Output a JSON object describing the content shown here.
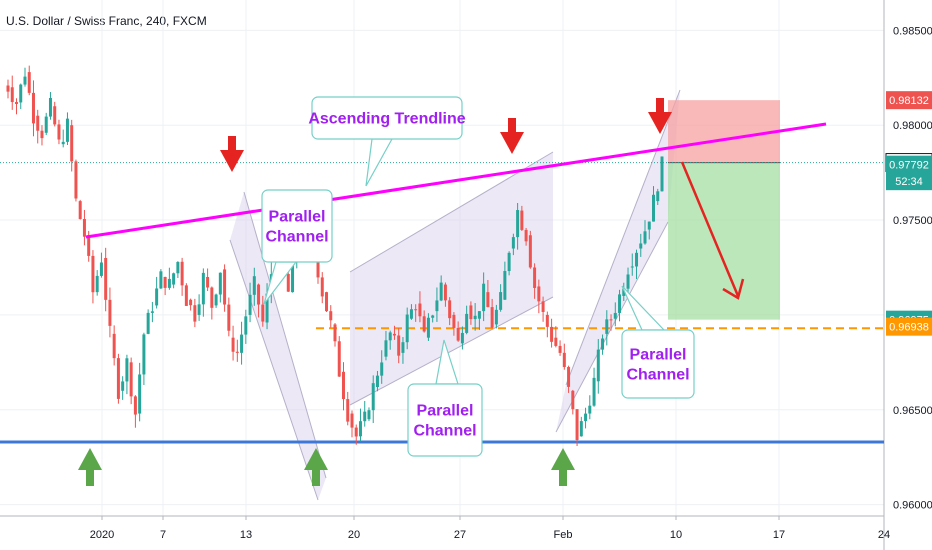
{
  "header": {
    "title": "U.S. Dollar / Swiss Franc, 240, FXCM"
  },
  "colors": {
    "up": "#26a69a",
    "down": "#ef5350",
    "trendline": "#ff00ff",
    "support": "#3d78d8",
    "resistance_dashed": "#ff9800",
    "channel_fill": "#dcd6ee",
    "arrow_red": "#e52421",
    "arrow_green": "#5aa649",
    "text_purple": "#a020f0",
    "callout_border": "#76d0c7"
  },
  "chart_data": {
    "type": "candlestick",
    "symbol": "U.S. Dollar / Swiss Franc",
    "timeframe": "240",
    "source": "FXCM",
    "ylim": [
      0.9594,
      0.9866
    ],
    "y_ticks": [
      "0.98500",
      "0.98000",
      "0.97500",
      "0.97000",
      "0.96500",
      "0.96000"
    ],
    "x_ticks": [
      "2020",
      "7",
      "13",
      "20",
      "27",
      "Feb",
      "10",
      "17",
      "24"
    ],
    "price_labels": [
      {
        "value": "0.98132",
        "price": 0.98132,
        "color": "#ef5350"
      },
      {
        "value": "0.97803",
        "price": 0.97803,
        "color": "#131722"
      },
      {
        "value": "0.97792",
        "price": 0.97792,
        "color": "#26a69a"
      },
      {
        "value": "52:34",
        "price": 0.97705,
        "color": "#26a69a"
      },
      {
        "value": "0.96975",
        "price": 0.96975,
        "color": "#26a69a"
      },
      {
        "value": "0.96938",
        "price": 0.96938,
        "color": "#ff9800"
      }
    ],
    "levels": {
      "support": 0.9633,
      "dashed_resistance": 0.9693,
      "stop": 0.98132,
      "entry": 0.97803,
      "target": 0.96975
    },
    "ohlc_close_path": [
      0.982,
      0.9812,
      0.9828,
      0.9805,
      0.9796,
      0.981,
      0.979,
      0.98,
      0.976,
      0.9742,
      0.9712,
      0.973,
      0.969,
      0.966,
      0.9675,
      0.9648,
      0.969,
      0.9705,
      0.972,
      0.9716,
      0.9728,
      0.9708,
      0.97,
      0.972,
      0.9705,
      0.9724,
      0.9688,
      0.968,
      0.97,
      0.9716,
      0.9696,
      0.9722,
      0.9728,
      0.9712,
      0.9738,
      0.975,
      0.9735,
      0.9712,
      0.9695,
      0.967,
      0.9648,
      0.9636,
      0.9645,
      0.9662,
      0.9678,
      0.969,
      0.968,
      0.9698,
      0.9706,
      0.9688,
      0.9702,
      0.9716,
      0.97,
      0.9685,
      0.9705,
      0.9698,
      0.9712,
      0.9695,
      0.9708,
      0.9735,
      0.9755,
      0.9742,
      0.9715,
      0.97,
      0.9688,
      0.968,
      0.966,
      0.9636,
      0.9648,
      0.9665,
      0.969,
      0.9698,
      0.971,
      0.9725,
      0.9735,
      0.9745,
      0.976,
      0.9779
    ]
  },
  "annotations": {
    "trendline_label": "Ascending Trendline",
    "channel_label_1_line1": "Parallel",
    "channel_label_1_line2": "Channel",
    "channel_label_2_line1": "Parallel",
    "channel_label_2_line2": "Channel",
    "channel_label_3_line1": "Parallel",
    "channel_label_3_line2": "Channel"
  }
}
